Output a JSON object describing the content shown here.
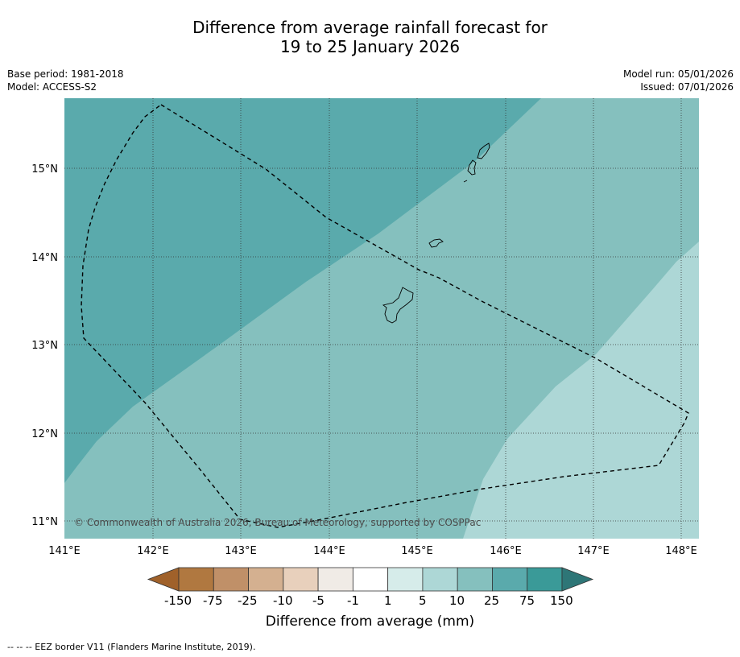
{
  "title": {
    "line1": "Difference from average rainfall forecast for",
    "line2": "19 to 25 January 2026"
  },
  "meta_left": {
    "base_period": "Base period: 1981-2018",
    "model": "Model: ACCESS-S2"
  },
  "meta_right": {
    "model_run": "Model run: 05/01/2026",
    "issued": "Issued: 07/01/2026"
  },
  "map": {
    "lat_labels": [
      "15°N",
      "14°N",
      "13°N",
      "12°N",
      "11°N"
    ],
    "lon_labels": [
      "141°E",
      "142°E",
      "143°E",
      "144°E",
      "145°E",
      "146°E",
      "147°E",
      "148°E"
    ],
    "copyright": "© Commonwealth of Australia 2026, Bureau of Meteorology, supported by COSPPac"
  },
  "colorbar": {
    "colors": [
      "#a0612a",
      "#b07840",
      "#c09068",
      "#d4b090",
      "#e8d0bc",
      "#f0ebe6",
      "#ffffff",
      "#d6ecea",
      "#add7d6",
      "#85c0be",
      "#5aaaac",
      "#3a9a98",
      "#2e7677"
    ],
    "tick_labels": [
      "-150",
      "-75",
      "-25",
      "-10",
      "-5",
      "-1",
      "1",
      "5",
      "10",
      "25",
      "75",
      "150"
    ],
    "title": "Difference from average (mm)"
  },
  "footer": "--  --  -- EEZ border V11 (Flanders Marine Institute, 2019)."
}
